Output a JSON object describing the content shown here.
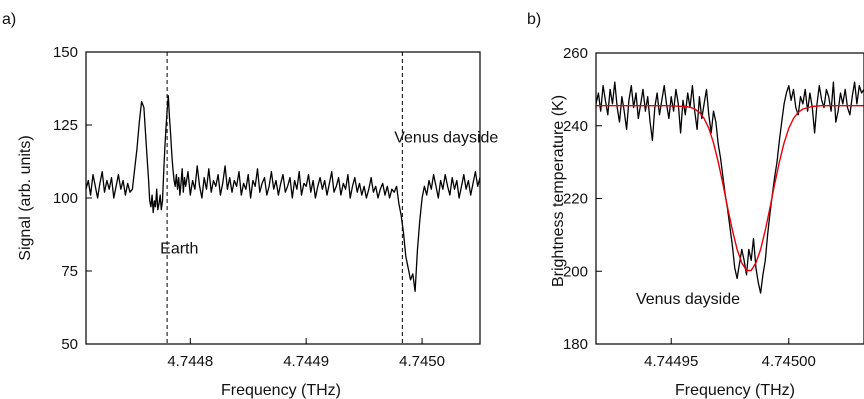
{
  "chart_data": [
    {
      "panel_label": "a)",
      "type": "line",
      "xlabel": "Frequency (THz)",
      "ylabel": "Signal (arb. units)",
      "xlim": [
        4.74471,
        4.74505
      ],
      "ylim": [
        50,
        150
      ],
      "xticks": [
        4.7448,
        4.7449,
        4.745
      ],
      "xtick_labels": [
        "4.7448",
        "4.7449",
        "4.7450"
      ],
      "yticks": [
        50,
        75,
        100,
        125,
        150
      ],
      "ytick_labels": [
        "50",
        "75",
        "100",
        "125",
        "150"
      ],
      "grid": false,
      "vlines": [
        4.74478,
        4.744983
      ],
      "annotations": [
        {
          "text": "Earth",
          "x": 4.744774,
          "y": 81
        },
        {
          "text": "Venus dayside",
          "x": 4.744976,
          "y": 119
        }
      ],
      "series": [
        {
          "color": "#000000",
          "x": [
            4.74471,
            4.744712,
            4.744714,
            4.744716,
            4.744718,
            4.74472,
            4.744722,
            4.744724,
            4.744726,
            4.744728,
            4.74473,
            4.744732,
            4.744734,
            4.744736,
            4.744738,
            4.74474,
            4.744742,
            4.744744,
            4.744746,
            4.744748,
            4.74475,
            4.744752,
            4.744754,
            4.744756,
            4.744758,
            4.74476,
            4.744762,
            4.744764,
            4.744765,
            4.744766,
            4.744767,
            4.744768,
            4.744769,
            4.74477,
            4.744771,
            4.744772,
            4.744773,
            4.744774,
            4.744775,
            4.744776,
            4.744777,
            4.744778,
            4.744779,
            4.74478,
            4.744781,
            4.744782,
            4.744783,
            4.744784,
            4.744785,
            4.744786,
            4.744787,
            4.744788,
            4.744789,
            4.74479,
            4.744791,
            4.744792,
            4.744793,
            4.744794,
            4.744795,
            4.744796,
            4.744798,
            4.7448,
            4.744802,
            4.744804,
            4.744806,
            4.744808,
            4.74481,
            4.744812,
            4.744814,
            4.744816,
            4.744818,
            4.74482,
            4.744822,
            4.744824,
            4.744826,
            4.744828,
            4.74483,
            4.744832,
            4.744834,
            4.744836,
            4.744838,
            4.74484,
            4.744842,
            4.744844,
            4.744846,
            4.744848,
            4.74485,
            4.744852,
            4.744854,
            4.744856,
            4.744858,
            4.74486,
            4.744862,
            4.744864,
            4.744866,
            4.744868,
            4.74487,
            4.744872,
            4.744874,
            4.744876,
            4.744878,
            4.74488,
            4.744882,
            4.744884,
            4.744886,
            4.744888,
            4.74489,
            4.744892,
            4.744894,
            4.744896,
            4.744898,
            4.7449,
            4.744902,
            4.744904,
            4.744906,
            4.744908,
            4.74491,
            4.744912,
            4.744914,
            4.744916,
            4.744918,
            4.74492,
            4.744922,
            4.744924,
            4.744926,
            4.744928,
            4.74493,
            4.744932,
            4.744934,
            4.744936,
            4.744938,
            4.74494,
            4.744942,
            4.744944,
            4.744946,
            4.744948,
            4.74495,
            4.744952,
            4.744954,
            4.744956,
            4.744958,
            4.74496,
            4.744962,
            4.744964,
            4.744966,
            4.744968,
            4.74497,
            4.744972,
            4.744974,
            4.744976,
            4.744978,
            4.74498,
            4.744982,
            4.744984,
            4.744986,
            4.744988,
            4.74499,
            4.744992,
            4.744994,
            4.744996,
            4.744998,
            4.745,
            4.745002,
            4.745004,
            4.745006,
            4.745008,
            4.74501,
            4.745012,
            4.745014,
            4.745016,
            4.745018,
            4.74502,
            4.745022,
            4.745024,
            4.745026,
            4.745028,
            4.74503,
            4.745032,
            4.745034,
            4.745036,
            4.745038,
            4.74504,
            4.745042,
            4.745044,
            4.745046,
            4.745048,
            4.74505
          ],
          "y": [
            103,
            106,
            101,
            108,
            104,
            100,
            105,
            109,
            102,
            106,
            103,
            107,
            100,
            104,
            108,
            103,
            106,
            101,
            105,
            102,
            103,
            110,
            117,
            126,
            133,
            131,
            118,
            106,
            99,
            97,
            101,
            95,
            99,
            97,
            103,
            96,
            98,
            101,
            96,
            99,
            108,
            117,
            124,
            130,
            135,
            128,
            122,
            115,
            110,
            106,
            104,
            108,
            103,
            107,
            101,
            105,
            110,
            102,
            107,
            104,
            109,
            101,
            106,
            103,
            111,
            104,
            100,
            107,
            103,
            110,
            102,
            106,
            104,
            108,
            101,
            105,
            111,
            103,
            107,
            102,
            106,
            104,
            109,
            101,
            105,
            103,
            108,
            100,
            106,
            104,
            110,
            102,
            105,
            107,
            101,
            104,
            109,
            103,
            106,
            101,
            105,
            108,
            102,
            104,
            107,
            100,
            106,
            103,
            109,
            101,
            105,
            104,
            108,
            102,
            106,
            100,
            104,
            107,
            103,
            106,
            101,
            105,
            109,
            102,
            104,
            107,
            101,
            105,
            103,
            108,
            100,
            104,
            107,
            102,
            105,
            101,
            104,
            100,
            103,
            107,
            102,
            104,
            100,
            103,
            105,
            101,
            104,
            100,
            103,
            102,
            104,
            98,
            94,
            88,
            80,
            76,
            72,
            74,
            68,
            82,
            92,
            100,
            104,
            101,
            106,
            103,
            108,
            104,
            100,
            106,
            103,
            108,
            104,
            101,
            107,
            103,
            106,
            100,
            104,
            108,
            103,
            106,
            101,
            105,
            109,
            104,
            107
          ]
        }
      ]
    },
    {
      "panel_label": "b)",
      "type": "line",
      "xlabel": "Frequency (THz)",
      "ylabel": "Brightness temperature (K)",
      "xlim": [
        4.744918,
        4.745032
      ],
      "ylim": [
        180,
        260
      ],
      "xticks": [
        4.74495,
        4.745
      ],
      "xtick_labels": [
        "4.74495",
        "4.74500"
      ],
      "yticks": [
        180,
        200,
        220,
        240,
        260
      ],
      "ytick_labels": [
        "180",
        "200",
        "220",
        "240",
        "260"
      ],
      "grid": false,
      "annotations": [
        {
          "text": "Venus dayside",
          "x": 4.744935,
          "y": 191
        }
      ],
      "series": [
        {
          "color": "#000000",
          "x": [
            4.744918,
            4.744919,
            4.74492,
            4.744921,
            4.744922,
            4.744923,
            4.744924,
            4.744925,
            4.744926,
            4.744927,
            4.744928,
            4.744929,
            4.74493,
            4.744931,
            4.744932,
            4.744933,
            4.744934,
            4.744935,
            4.744936,
            4.744937,
            4.744938,
            4.744939,
            4.74494,
            4.744941,
            4.744942,
            4.744943,
            4.744944,
            4.744945,
            4.744946,
            4.744947,
            4.744948,
            4.744949,
            4.74495,
            4.744951,
            4.744952,
            4.744953,
            4.744954,
            4.744955,
            4.744956,
            4.744957,
            4.744958,
            4.744959,
            4.74496,
            4.744961,
            4.744962,
            4.744963,
            4.744964,
            4.744965,
            4.744966,
            4.744967,
            4.744968,
            4.744969,
            4.74497,
            4.744971,
            4.744972,
            4.744973,
            4.744974,
            4.744975,
            4.744976,
            4.744977,
            4.744978,
            4.744979,
            4.74498,
            4.744981,
            4.744982,
            4.744983,
            4.744984,
            4.744985,
            4.744986,
            4.744987,
            4.744988,
            4.744989,
            4.74499,
            4.744991,
            4.744992,
            4.744993,
            4.744994,
            4.744995,
            4.744996,
            4.744997,
            4.744998,
            4.744999,
            4.745,
            4.745001,
            4.745002,
            4.745003,
            4.745004,
            4.745005,
            4.745006,
            4.745007,
            4.745008,
            4.745009,
            4.74501,
            4.745011,
            4.745012,
            4.745013,
            4.745014,
            4.745015,
            4.745016,
            4.745017,
            4.745018,
            4.745019,
            4.74502,
            4.745021,
            4.745022,
            4.745023,
            4.745024,
            4.745025,
            4.745026,
            4.745027,
            4.745028,
            4.745029,
            4.74503,
            4.745031,
            4.745032
          ],
          "y": [
            246,
            249,
            244,
            251,
            247,
            243,
            250,
            246,
            252,
            245,
            241,
            248,
            244,
            239,
            247,
            251,
            245,
            249,
            242,
            246,
            250,
            244,
            248,
            241,
            236,
            245,
            249,
            243,
            247,
            251,
            246,
            242,
            248,
            244,
            250,
            246,
            238,
            247,
            243,
            249,
            245,
            251,
            244,
            239,
            248,
            242,
            246,
            250,
            243,
            238,
            244,
            241,
            235,
            231,
            226,
            221,
            217,
            212,
            207,
            201,
            198,
            202,
            206,
            203,
            199,
            206,
            203,
            209,
            201,
            197,
            194,
            199,
            203,
            210,
            216,
            221,
            226,
            230,
            236,
            241,
            246,
            249,
            251,
            247,
            250,
            245,
            243,
            248,
            246,
            250,
            244,
            249,
            245,
            238,
            246,
            251,
            247,
            245,
            250,
            248,
            244,
            252,
            241,
            244,
            249,
            246,
            250,
            245,
            243,
            248,
            252,
            246,
            251,
            249,
            250
          ]
        },
        {
          "color": "#e8000b",
          "x": [
            4.744918,
            4.744928,
            4.744938,
            4.744948,
            4.744952,
            4.744956,
            4.744958,
            4.74496,
            4.744962,
            4.744964,
            4.744966,
            4.744968,
            4.74497,
            4.744972,
            4.744974,
            4.744976,
            4.744978,
            4.74498,
            4.744982,
            4.744984,
            4.744986,
            4.744988,
            4.74499,
            4.744992,
            4.744994,
            4.744996,
            4.744998,
            4.745,
            4.745002,
            4.745004,
            4.745006,
            4.74501,
            4.745014,
            4.745018,
            4.745022,
            4.745026,
            4.74503,
            4.745032
          ],
          "y": [
            245.5,
            245.5,
            245.5,
            245.5,
            245.4,
            245.3,
            245.1,
            244.6,
            243.7,
            242.0,
            239.3,
            235.3,
            230.1,
            224.0,
            217.5,
            211.3,
            206.0,
            202.3,
            200.2,
            200.2,
            202.3,
            206.0,
            211.3,
            217.5,
            224.0,
            230.1,
            235.3,
            239.3,
            242.0,
            243.7,
            244.6,
            245.3,
            245.5,
            245.5,
            245.5,
            245.5,
            245.5,
            245.5
          ]
        }
      ]
    }
  ]
}
